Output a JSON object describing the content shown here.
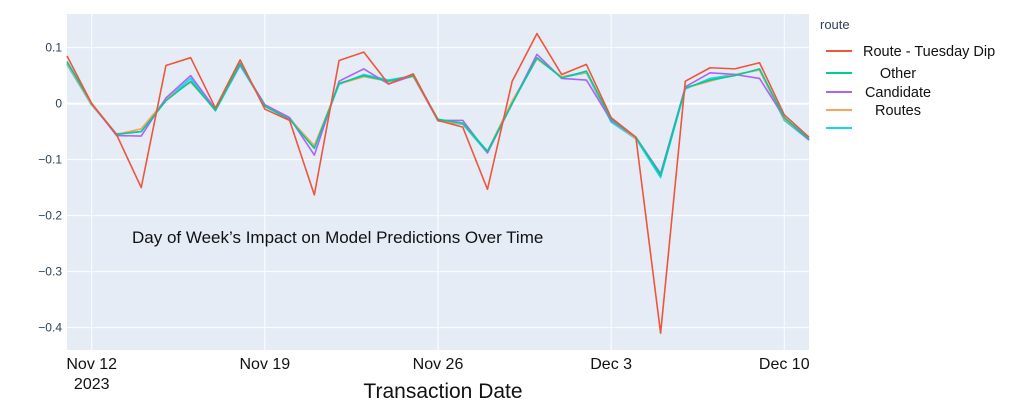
{
  "chart_data": {
    "type": "line",
    "title": "",
    "annotation": "Day of Week’s Impact on Model Predictions Over Time",
    "xlabel": "Transaction Date",
    "ylabel": "",
    "x_ticks": [
      {
        "date": "2023-11-12",
        "label": "Nov 12",
        "sublabel": "2023"
      },
      {
        "date": "2023-11-19",
        "label": "Nov 19",
        "sublabel": ""
      },
      {
        "date": "2023-11-26",
        "label": "Nov 26",
        "sublabel": ""
      },
      {
        "date": "2023-12-03",
        "label": "Dec 3",
        "sublabel": ""
      },
      {
        "date": "2023-12-10",
        "label": "Dec 10",
        "sublabel": ""
      }
    ],
    "y_ticks": [
      {
        "value": 0.1,
        "label": "0.1"
      },
      {
        "value": 0,
        "label": "0"
      },
      {
        "value": -0.1,
        "label": "−0.1"
      },
      {
        "value": -0.2,
        "label": "−0.2"
      },
      {
        "value": -0.3,
        "label": "−0.3"
      },
      {
        "value": -0.4,
        "label": "−0.4"
      }
    ],
    "xlim": [
      "2023-11-11",
      "2023-12-11"
    ],
    "ylim": [
      -0.44,
      0.16
    ],
    "grid": true,
    "legend": {
      "title": "route",
      "placement": "right",
      "entries": [
        {
          "label": "Route - Tuesday Dip",
          "color": "#ef553b"
        },
        {
          "label": "Other",
          "color": "#00cc96"
        },
        {
          "label": "Candidate",
          "color": "#ab63fa"
        },
        {
          "label": "Routes",
          "color": "#ffa15a"
        },
        {
          "label": "",
          "color": "#19d3f3"
        }
      ]
    },
    "x": [
      "2023-11-11",
      "2023-11-12",
      "2023-11-13",
      "2023-11-14",
      "2023-11-15",
      "2023-11-16",
      "2023-11-17",
      "2023-11-18",
      "2023-11-19",
      "2023-11-20",
      "2023-11-21",
      "2023-11-22",
      "2023-11-23",
      "2023-11-24",
      "2023-11-25",
      "2023-11-26",
      "2023-11-27",
      "2023-11-28",
      "2023-11-29",
      "2023-11-30",
      "2023-12-01",
      "2023-12-02",
      "2023-12-03",
      "2023-12-04",
      "2023-12-05",
      "2023-12-06",
      "2023-12-07",
      "2023-12-08",
      "2023-12-09",
      "2023-12-10",
      "2023-12-11"
    ],
    "series": [
      {
        "color": "#ef553b",
        "values": [
          0.085,
          0.0,
          -0.055,
          -0.15,
          0.068,
          0.082,
          -0.008,
          0.078,
          -0.01,
          -0.03,
          -0.163,
          0.077,
          0.092,
          0.035,
          0.053,
          -0.03,
          -0.042,
          -0.153,
          0.04,
          0.125,
          0.052,
          0.07,
          -0.025,
          -0.06,
          -0.41,
          0.04,
          0.064,
          0.062,
          0.073,
          -0.02,
          -0.06
        ]
      },
      {
        "color": "#00cc96",
        "values": [
          0.075,
          0.0,
          -0.055,
          -0.05,
          0.005,
          0.04,
          -0.012,
          0.072,
          -0.005,
          -0.028,
          -0.08,
          0.036,
          0.05,
          0.04,
          0.05,
          -0.028,
          -0.035,
          -0.085,
          0.0,
          0.082,
          0.046,
          0.058,
          -0.028,
          -0.06,
          -0.128,
          0.028,
          0.042,
          0.05,
          0.062,
          -0.025,
          -0.063
        ]
      },
      {
        "color": "#ab63fa",
        "values": [
          0.075,
          0.0,
          -0.057,
          -0.058,
          0.01,
          0.05,
          -0.01,
          0.07,
          -0.002,
          -0.025,
          -0.092,
          0.04,
          0.062,
          0.035,
          0.05,
          -0.03,
          -0.03,
          -0.088,
          0.0,
          0.088,
          0.045,
          0.042,
          -0.03,
          -0.06,
          -0.125,
          0.03,
          0.055,
          0.052,
          0.045,
          -0.025,
          -0.065
        ]
      },
      {
        "color": "#ffa15a",
        "values": [
          0.072,
          -0.002,
          -0.055,
          -0.045,
          0.008,
          0.038,
          -0.01,
          0.072,
          -0.004,
          -0.027,
          -0.075,
          0.035,
          0.048,
          0.04,
          0.048,
          -0.03,
          -0.036,
          -0.085,
          0.005,
          0.08,
          0.048,
          0.056,
          -0.03,
          -0.062,
          -0.125,
          0.028,
          0.04,
          0.052,
          0.06,
          -0.028,
          -0.063
        ]
      },
      {
        "color": "#19d3f3",
        "values": [
          0.07,
          -0.003,
          -0.054,
          -0.05,
          0.006,
          0.045,
          -0.013,
          0.068,
          -0.004,
          -0.026,
          -0.078,
          0.034,
          0.052,
          0.042,
          0.05,
          -0.031,
          -0.037,
          -0.088,
          0.002,
          0.08,
          0.047,
          0.055,
          -0.033,
          -0.063,
          -0.132,
          0.026,
          0.045,
          0.052,
          0.06,
          -0.03,
          -0.065
        ]
      }
    ]
  }
}
